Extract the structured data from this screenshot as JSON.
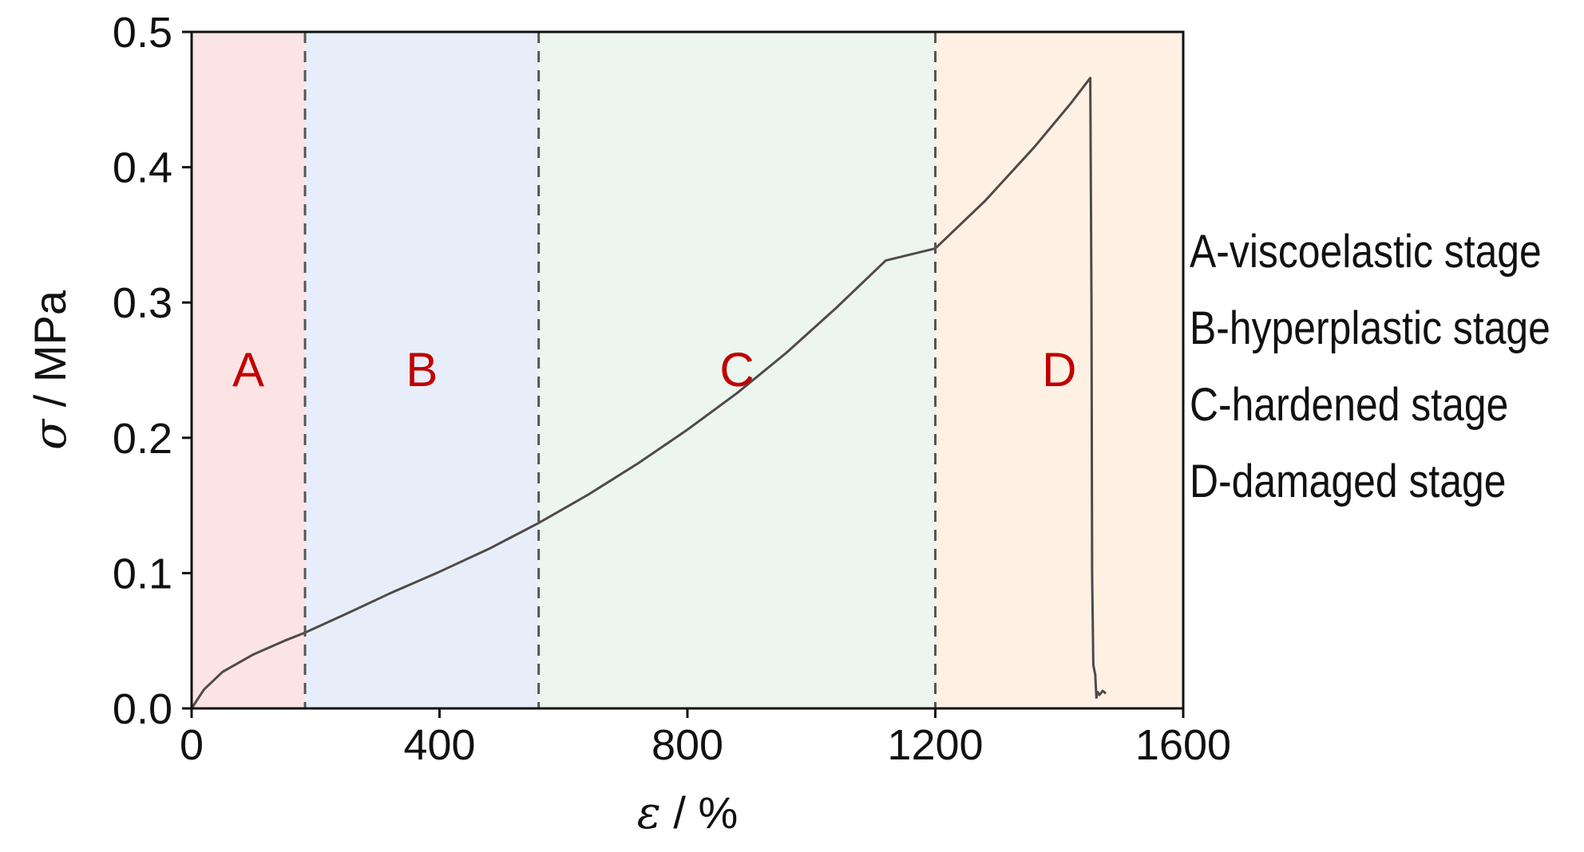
{
  "chart_data": {
    "type": "line",
    "xlabel_symbol": "ε",
    "xlabel_unit": " / %",
    "ylabel_symbol": "σ",
    "ylabel_unit": " / MPa",
    "xlim": [
      0,
      1600
    ],
    "ylim": [
      0,
      0.5
    ],
    "xticks": [
      0,
      400,
      800,
      1200,
      1600
    ],
    "xtick_labels": [
      "0",
      "400",
      "800",
      "1200",
      "1600"
    ],
    "yticks": [
      0.0,
      0.1,
      0.2,
      0.3,
      0.4,
      0.5
    ],
    "ytick_labels": [
      "0.0",
      "0.1",
      "0.2",
      "0.3",
      "0.4",
      "0.5"
    ],
    "grid": false,
    "regions": [
      {
        "label": "A",
        "x_start": 0,
        "x_end": 183,
        "color": "#fde4e4"
      },
      {
        "label": "B",
        "x_start": 183,
        "x_end": 560,
        "color": "#e8eef9"
      },
      {
        "label": "C",
        "x_start": 560,
        "x_end": 1200,
        "color": "#edf5ef"
      },
      {
        "label": "D",
        "x_start": 1200,
        "x_end": 1600,
        "color": "#fef1e4"
      }
    ],
    "region_label_color": "#c00000",
    "region_label_y": 0.25,
    "boundaries": [
      183,
      560,
      1200
    ],
    "series": [
      {
        "color": "#4f4a48",
        "x": [
          0,
          20,
          50,
          100,
          150,
          183,
          250,
          320,
          400,
          480,
          560,
          640,
          720,
          800,
          880,
          960,
          1040,
          1120,
          1200,
          1280,
          1360,
          1420,
          1450,
          1452,
          1453,
          1455,
          1458,
          1460,
          1462,
          1465,
          1470,
          1475
        ],
        "y": [
          0,
          0.014,
          0.027,
          0.04,
          0.05,
          0.056,
          0.07,
          0.085,
          0.101,
          0.118,
          0.137,
          0.158,
          0.181,
          0.206,
          0.233,
          0.263,
          0.296,
          0.331,
          0.34,
          0.375,
          0.415,
          0.448,
          0.466,
          0.3,
          0.1,
          0.032,
          0.025,
          0.008,
          0.012,
          0.01,
          0.013,
          0.011
        ]
      }
    ]
  },
  "legend": [
    "A-viscoelastic stage",
    "B-hyperplastic stage",
    "C-hardened stage",
    "D-damaged stage"
  ]
}
